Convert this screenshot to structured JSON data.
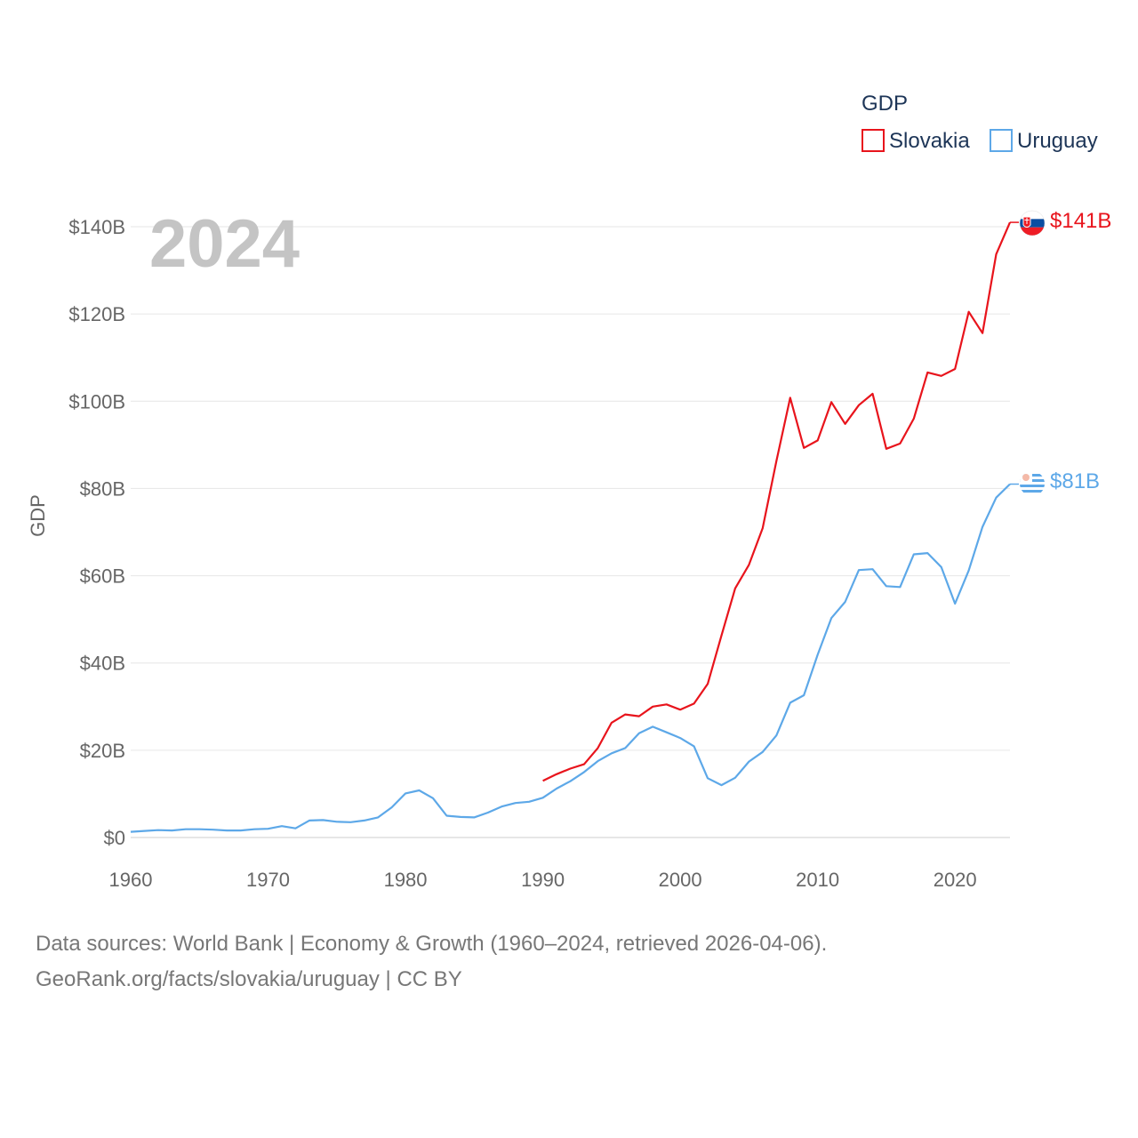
{
  "chart_data": {
    "type": "line",
    "title": "",
    "year_label": "2024",
    "ylabel": "GDP",
    "xlabel": "",
    "xlim": [
      1960,
      2024
    ],
    "ylim": [
      0,
      140
    ],
    "y_unit": "B USD",
    "x_ticks": [
      1960,
      1970,
      1980,
      1990,
      2000,
      2010,
      2020
    ],
    "x_tick_labels": [
      "1960",
      "1970",
      "1980",
      "1990",
      "2000",
      "2010",
      "2020"
    ],
    "y_ticks": [
      0,
      20,
      40,
      60,
      80,
      100,
      120,
      140
    ],
    "y_tick_labels": [
      "$0",
      "$20B",
      "$40B",
      "$60B",
      "$80B",
      "$100B",
      "$120B",
      "$140B"
    ],
    "grid": true,
    "legend": {
      "title": "GDP",
      "placement": "top-right",
      "entries": [
        "Slovakia",
        "Uruguay"
      ]
    },
    "series": [
      {
        "name": "Slovakia",
        "color": "#e8141c",
        "end_label": "$141B",
        "x": [
          1990,
          1991,
          1992,
          1993,
          1994,
          1995,
          1996,
          1997,
          1998,
          1999,
          2000,
          2001,
          2002,
          2003,
          2004,
          2005,
          2006,
          2007,
          2008,
          2009,
          2010,
          2011,
          2012,
          2013,
          2014,
          2015,
          2016,
          2017,
          2018,
          2019,
          2020,
          2021,
          2022,
          2023,
          2024
        ],
        "values": [
          13.0,
          14.5,
          15.8,
          16.8,
          20.5,
          26.3,
          28.2,
          27.8,
          30.0,
          30.5,
          29.3,
          30.7,
          35.2,
          46.3,
          57.1,
          62.5,
          70.9,
          86.3,
          100.8,
          89.3,
          91.0,
          99.8,
          94.8,
          99.1,
          101.7,
          89.1,
          90.3,
          96.0,
          106.6,
          105.8,
          107.4,
          120.5,
          115.6,
          133.7,
          141.0
        ]
      },
      {
        "name": "Uruguay",
        "color": "#5da8e8",
        "end_label": "$81B",
        "x": [
          1960,
          1961,
          1962,
          1963,
          1964,
          1965,
          1966,
          1967,
          1968,
          1969,
          1970,
          1971,
          1972,
          1973,
          1974,
          1975,
          1976,
          1977,
          1978,
          1979,
          1980,
          1981,
          1982,
          1983,
          1984,
          1985,
          1986,
          1987,
          1988,
          1989,
          1990,
          1991,
          1992,
          1993,
          1994,
          1995,
          1996,
          1997,
          1998,
          1999,
          2000,
          2001,
          2002,
          2003,
          2004,
          2005,
          2006,
          2007,
          2008,
          2009,
          2010,
          2011,
          2012,
          2013,
          2014,
          2015,
          2016,
          2017,
          2018,
          2019,
          2020,
          2021,
          2022,
          2023,
          2024
        ],
        "values": [
          1.3,
          1.5,
          1.7,
          1.6,
          1.9,
          1.9,
          1.8,
          1.6,
          1.6,
          1.9,
          2.0,
          2.6,
          2.1,
          3.9,
          4.0,
          3.6,
          3.5,
          3.9,
          4.6,
          6.9,
          10.1,
          10.8,
          9.0,
          5.0,
          4.7,
          4.6,
          5.7,
          7.1,
          7.9,
          8.2,
          9.1,
          11.2,
          12.9,
          15.0,
          17.5,
          19.3,
          20.5,
          23.9,
          25.4,
          24.1,
          22.8,
          20.9,
          13.6,
          12.0,
          13.7,
          17.4,
          19.6,
          23.4,
          30.9,
          32.6,
          41.9,
          50.3,
          54.0,
          61.3,
          61.5,
          57.6,
          57.4,
          64.9,
          65.2,
          62.0,
          53.6,
          61.2,
          71.2,
          77.9,
          81.0
        ]
      }
    ]
  },
  "footer": {
    "line1": "Data sources: World Bank | Economy & Growth (1960–2024, retrieved 2026-04-06).",
    "line2": "GeoRank.org/facts/slovakia/uruguay | CC BY"
  }
}
